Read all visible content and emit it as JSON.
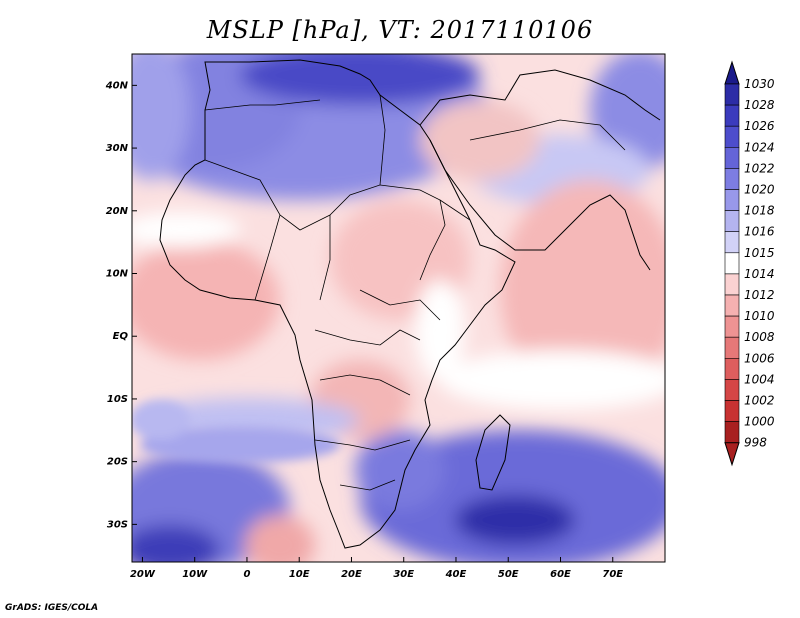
{
  "title": "MSLP [hPa], VT: 2017110106",
  "credit": "GrADS: IGES/COLA",
  "map": {
    "lon_range": [
      -22,
      80
    ],
    "lat_range": [
      -36,
      45
    ],
    "lat_ticks": [
      {
        "value": 40,
        "label": "40N"
      },
      {
        "value": 30,
        "label": "30N"
      },
      {
        "value": 20,
        "label": "20N"
      },
      {
        "value": 10,
        "label": "10N"
      },
      {
        "value": 0,
        "label": "EQ"
      },
      {
        "value": -10,
        "label": "10S"
      },
      {
        "value": -20,
        "label": "20S"
      },
      {
        "value": -30,
        "label": "30S"
      }
    ],
    "lon_ticks": [
      {
        "value": -20,
        "label": "20W"
      },
      {
        "value": -10,
        "label": "10W"
      },
      {
        "value": 0,
        "label": "0"
      },
      {
        "value": 10,
        "label": "10E"
      },
      {
        "value": 20,
        "label": "20E"
      },
      {
        "value": 30,
        "label": "30E"
      },
      {
        "value": 40,
        "label": "40E"
      },
      {
        "value": 50,
        "label": "50E"
      },
      {
        "value": 60,
        "label": "60E"
      },
      {
        "value": 70,
        "label": "70E"
      }
    ]
  },
  "colorbar": {
    "levels": [
      {
        "label": "1030",
        "color": "#1a1a8a"
      },
      {
        "label": "1028",
        "color": "#2c2ca6"
      },
      {
        "label": "1026",
        "color": "#3b3bbd"
      },
      {
        "label": "1024",
        "color": "#4d4dcc"
      },
      {
        "label": "1022",
        "color": "#6464d8"
      },
      {
        "label": "1020",
        "color": "#7d7de2"
      },
      {
        "label": "1018",
        "color": "#9898ea"
      },
      {
        "label": "1016",
        "color": "#b4b4f0"
      },
      {
        "label": "1015",
        "color": "#d2d2f7"
      },
      {
        "label": "1014",
        "color": "#ffffff"
      },
      {
        "label": "1012",
        "color": "#fbd2d2"
      },
      {
        "label": "1010",
        "color": "#f5b1b1"
      },
      {
        "label": "1008",
        "color": "#ee9393"
      },
      {
        "label": "1006",
        "color": "#e67878"
      },
      {
        "label": "1004",
        "color": "#de5e5e"
      },
      {
        "label": "1002",
        "color": "#d54646"
      },
      {
        "label": "1000",
        "color": "#c83232"
      },
      {
        "label": "998",
        "color": "#a82020"
      }
    ]
  }
}
